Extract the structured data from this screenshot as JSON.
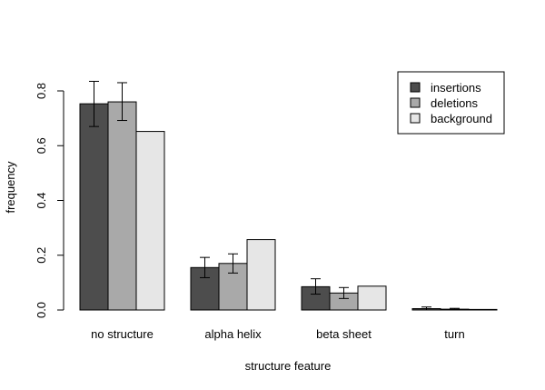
{
  "chart_data": {
    "type": "bar",
    "title": "",
    "xlabel": "structure feature",
    "ylabel": "frequency",
    "ylim": [
      0,
      0.8
    ],
    "yticks": [
      "0.0",
      "0.2",
      "0.4",
      "0.6",
      "0.8"
    ],
    "categories": [
      "no structure",
      "alpha helix",
      "beta sheet",
      "turn"
    ],
    "series": [
      {
        "name": "insertions",
        "color": "#4d4d4d",
        "values": [
          0.753,
          0.155,
          0.085,
          0.005
        ],
        "err_low": [
          0.67,
          0.118,
          0.058,
          0.0
        ],
        "err_high": [
          0.835,
          0.192,
          0.114,
          0.011
        ]
      },
      {
        "name": "deletions",
        "color": "#a9a9a9",
        "values": [
          0.76,
          0.17,
          0.062,
          0.003
        ],
        "err_low": [
          0.692,
          0.135,
          0.042,
          0.0
        ],
        "err_high": [
          0.83,
          0.205,
          0.082,
          0.006
        ]
      },
      {
        "name": "background",
        "color": "#e6e6e6",
        "values": [
          0.652,
          0.257,
          0.087,
          0.002
        ]
      }
    ],
    "grid": false,
    "legend_position": "top-right"
  }
}
